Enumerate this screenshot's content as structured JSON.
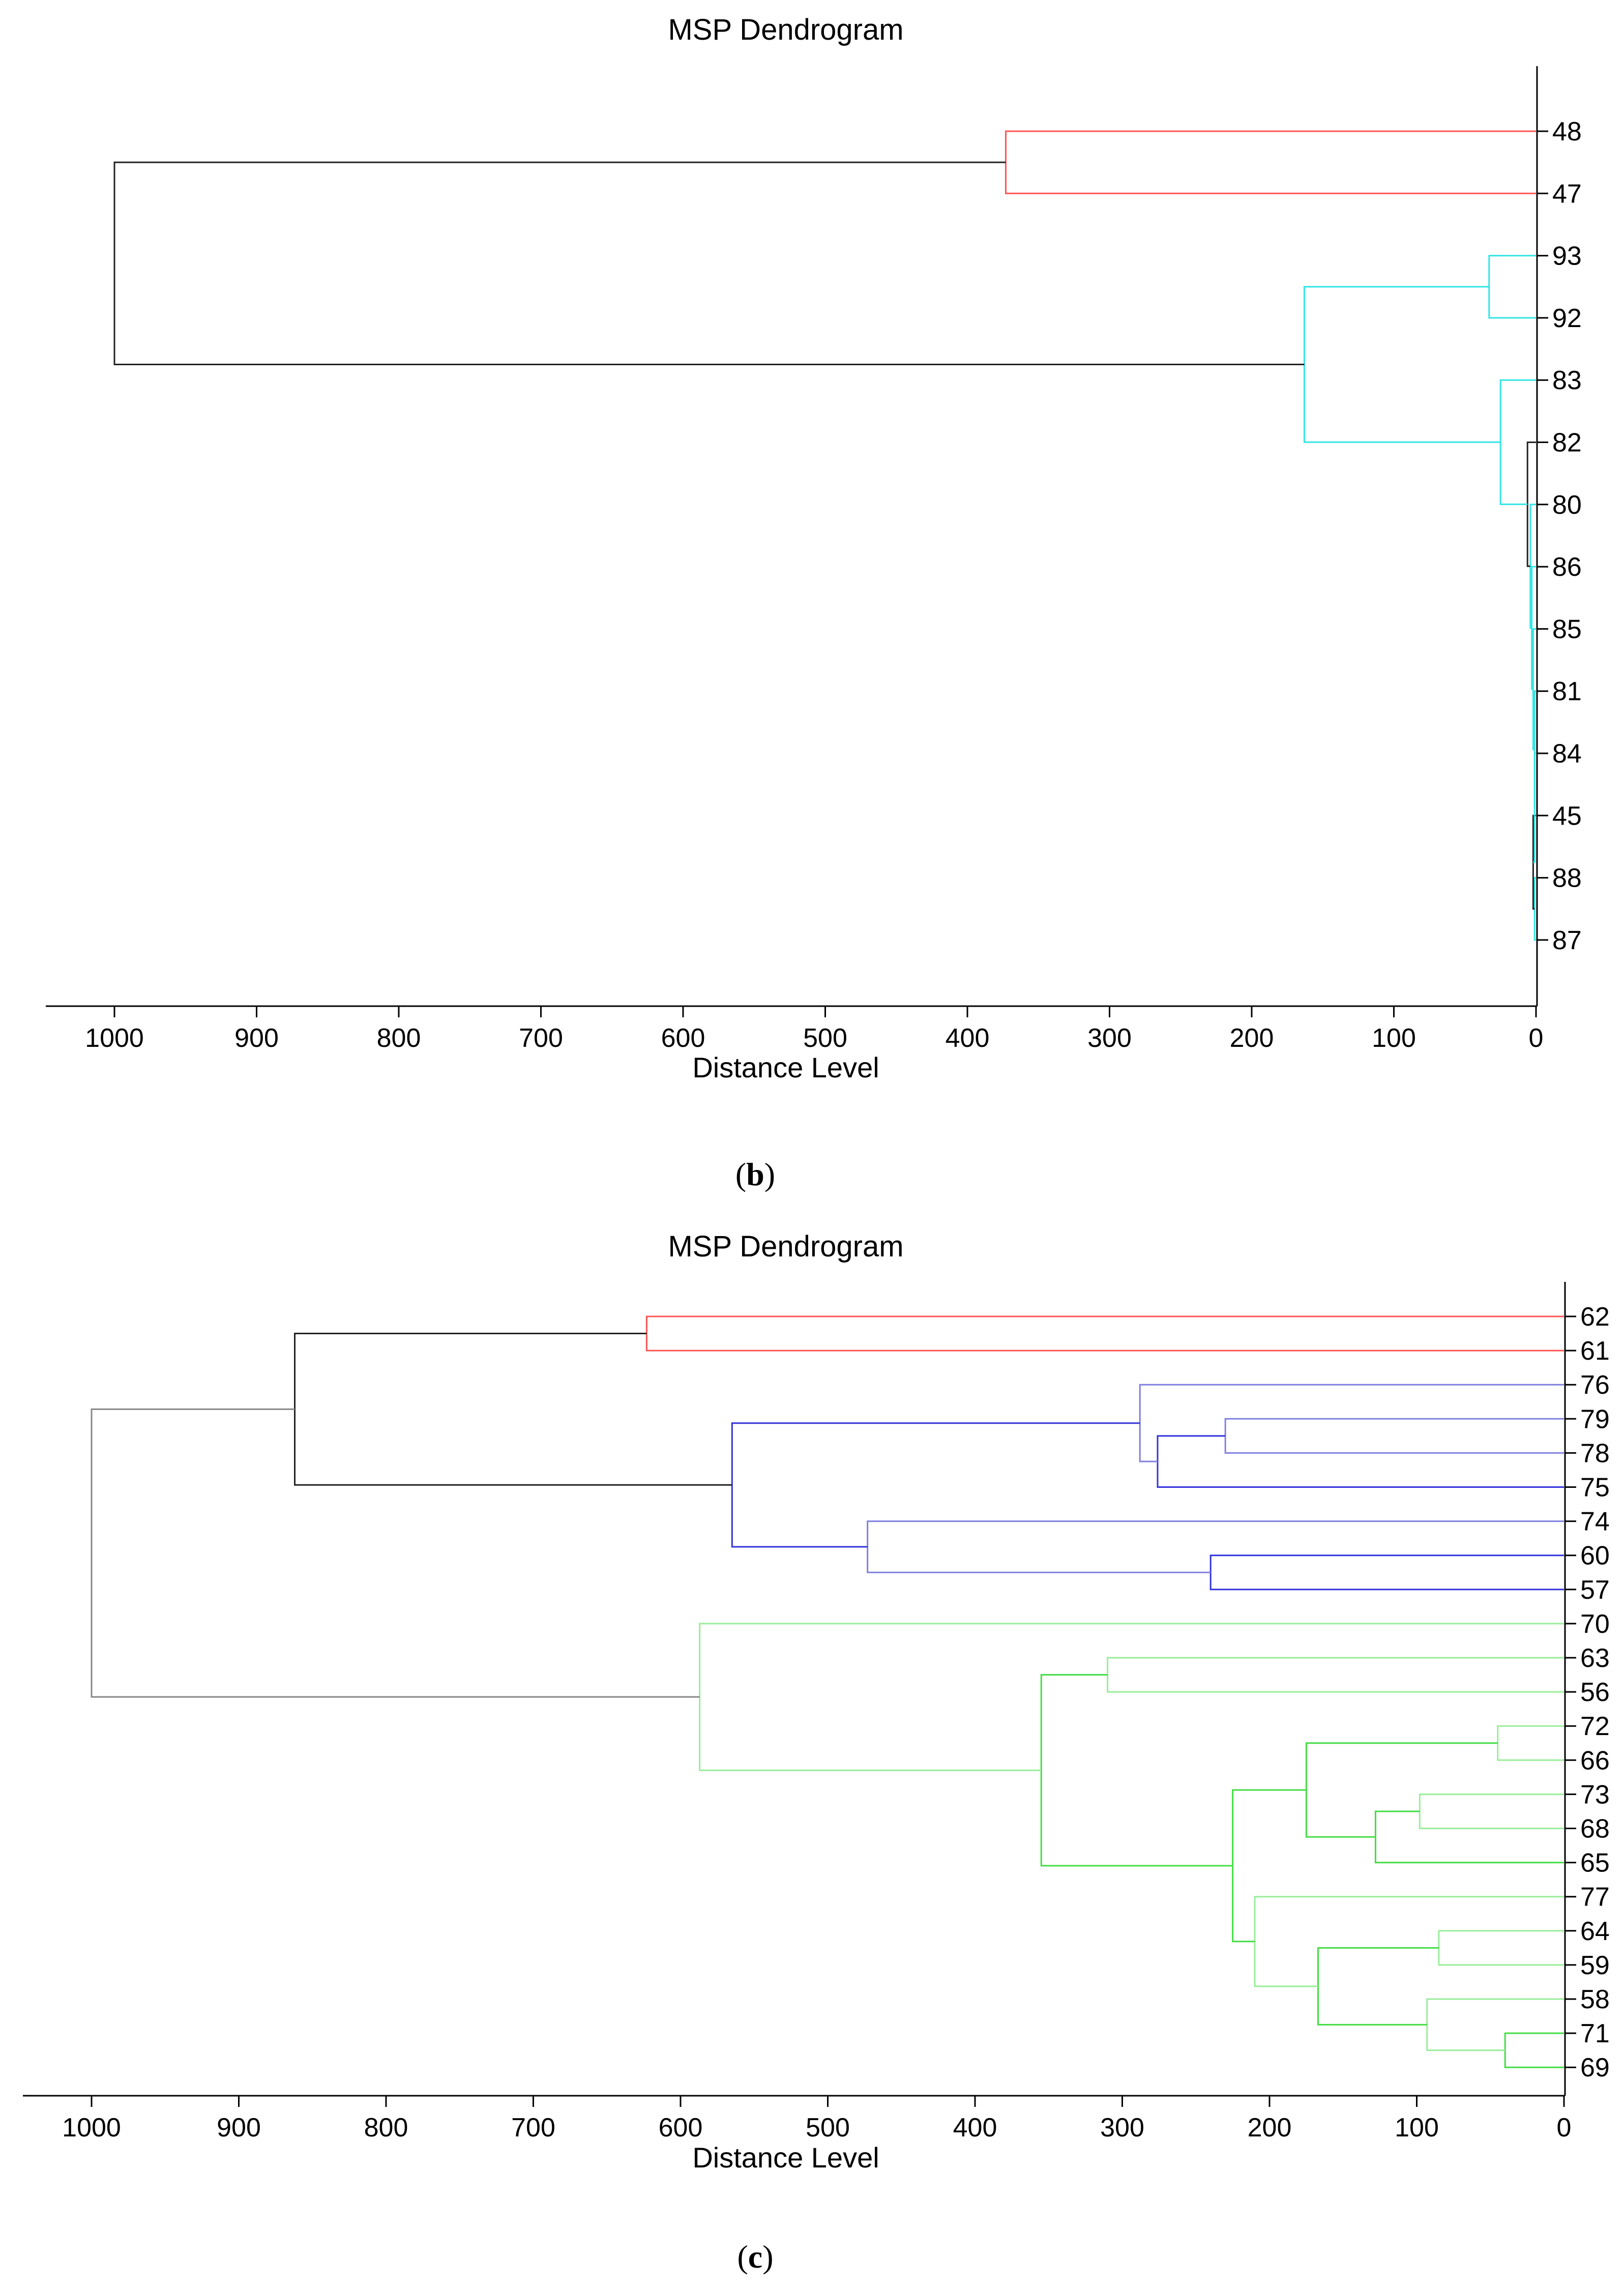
{
  "chart_data": [
    {
      "type": "dendrogram",
      "panel": "b",
      "panel_label_open": "(",
      "panel_label_letter": "b",
      "panel_label_close": ")",
      "title": "MSP Dendrogram",
      "xlabel": "Distance Level",
      "xlim": [
        1000,
        0
      ],
      "xticks": [
        1000,
        900,
        800,
        700,
        600,
        500,
        400,
        300,
        200,
        100,
        0
      ],
      "leaves": [
        "48",
        "47",
        "93",
        "92",
        "83",
        "82",
        "80",
        "86",
        "85",
        "81",
        "84",
        "45",
        "88",
        "87"
      ],
      "colors": {
        "red": "#ff5555",
        "cyan": "#33e5e5",
        "black": "#222222"
      },
      "merges": [
        {
          "a": "L88",
          "b": "L87",
          "dist": 1,
          "color": "cyan",
          "id": "m1"
        },
        {
          "a": "L45",
          "b": "m1",
          "dist": 2,
          "color": "black",
          "id": "m2"
        },
        {
          "a": "L84",
          "b": "m2",
          "dist": 1,
          "color": "cyan",
          "id": "m3"
        },
        {
          "a": "L81",
          "b": "m3",
          "dist": 1,
          "color": "cyan",
          "id": "m4"
        },
        {
          "a": "L85",
          "b": "m4",
          "dist": 2,
          "color": "cyan",
          "id": "m5"
        },
        {
          "a": "L86",
          "b": "m5",
          "dist": 3,
          "color": "cyan",
          "id": "m6"
        },
        {
          "a": "L80",
          "b": "m6",
          "dist": 4,
          "color": "cyan",
          "id": "m7"
        },
        {
          "a": "L82",
          "b": "m7",
          "dist": 6,
          "color": "black",
          "id": "m8"
        },
        {
          "a": "L83",
          "b": "m8",
          "dist": 25,
          "color": "cyan",
          "id": "m9"
        },
        {
          "a": "L93",
          "b": "L92",
          "dist": 33,
          "color": "cyan",
          "id": "m10"
        },
        {
          "a": "m10",
          "b": "m9",
          "dist": 163,
          "color": "cyan",
          "id": "m11"
        },
        {
          "a": "L48",
          "b": "L47",
          "dist": 373,
          "color": "red",
          "id": "m12"
        },
        {
          "a": "m12",
          "b": "m11",
          "dist": 1000,
          "color": "black",
          "id": "m13"
        }
      ]
    },
    {
      "type": "dendrogram",
      "panel": "c",
      "panel_label_open": "(",
      "panel_label_letter": "c",
      "panel_label_close": ")",
      "title": "MSP Dendrogram",
      "xlabel": "Distance Level",
      "xlim": [
        1000,
        0
      ],
      "xticks": [
        1000,
        900,
        800,
        700,
        600,
        500,
        400,
        300,
        200,
        100,
        0
      ],
      "leaves": [
        "62",
        "61",
        "76",
        "79",
        "78",
        "75",
        "74",
        "60",
        "57",
        "70",
        "63",
        "56",
        "72",
        "66",
        "73",
        "68",
        "65",
        "77",
        "64",
        "59",
        "58",
        "71",
        "69"
      ],
      "colors": {
        "red": "#ff5555",
        "blue": "#3333dd",
        "lightblue": "#8080e0",
        "green": "#44dd44",
        "lightgreen": "#99ee99",
        "gray": "#888888",
        "black": "#222222"
      },
      "merges": [
        {
          "a": "L62",
          "b": "L61",
          "dist": 623,
          "color": "red",
          "id": "n1"
        },
        {
          "a": "L79",
          "b": "L78",
          "dist": 230,
          "color": "lightblue",
          "id": "n2"
        },
        {
          "a": "n2",
          "b": "L75",
          "dist": 276,
          "color": "blue",
          "id": "n3"
        },
        {
          "a": "L76",
          "b": "n3",
          "dist": 288,
          "color": "lightblue",
          "id": "n4"
        },
        {
          "a": "L60",
          "b": "L57",
          "dist": 240,
          "color": "blue",
          "id": "n5"
        },
        {
          "a": "L74",
          "b": "n5",
          "dist": 473,
          "color": "lightblue",
          "id": "n6"
        },
        {
          "a": "n4",
          "b": "n6",
          "dist": 565,
          "color": "blue",
          "id": "n7"
        },
        {
          "a": "n1",
          "b": "n7",
          "dist": 862,
          "color": "black",
          "id": "n8"
        },
        {
          "a": "L63",
          "b": "L56",
          "dist": 310,
          "color": "lightgreen",
          "id": "n9"
        },
        {
          "a": "L72",
          "b": "L66",
          "dist": 45,
          "color": "lightgreen",
          "id": "n10"
        },
        {
          "a": "L73",
          "b": "L68",
          "dist": 98,
          "color": "lightgreen",
          "id": "n11"
        },
        {
          "a": "n11",
          "b": "L65",
          "dist": 128,
          "color": "green",
          "id": "n12"
        },
        {
          "a": "n10",
          "b": "n12",
          "dist": 175,
          "color": "green",
          "id": "n13"
        },
        {
          "a": "L64",
          "b": "L59",
          "dist": 85,
          "color": "lightgreen",
          "id": "n14"
        },
        {
          "a": "L71",
          "b": "L69",
          "dist": 40,
          "color": "green",
          "id": "n15"
        },
        {
          "a": "L58",
          "b": "n15",
          "dist": 93,
          "color": "lightgreen",
          "id": "n16"
        },
        {
          "a": "n14",
          "b": "n16",
          "dist": 167,
          "color": "green",
          "id": "n17"
        },
        {
          "a": "L77",
          "b": "n17",
          "dist": 210,
          "color": "lightgreen",
          "id": "n18"
        },
        {
          "a": "n13",
          "b": "n18",
          "dist": 225,
          "color": "green",
          "id": "n19"
        },
        {
          "a": "n9",
          "b": "n19",
          "dist": 355,
          "color": "green",
          "id": "n20"
        },
        {
          "a": "L70",
          "b": "n20",
          "dist": 587,
          "color": "lightgreen",
          "id": "n21"
        },
        {
          "a": "n8",
          "b": "n21",
          "dist": 1000,
          "color": "gray",
          "id": "n22"
        }
      ]
    }
  ]
}
